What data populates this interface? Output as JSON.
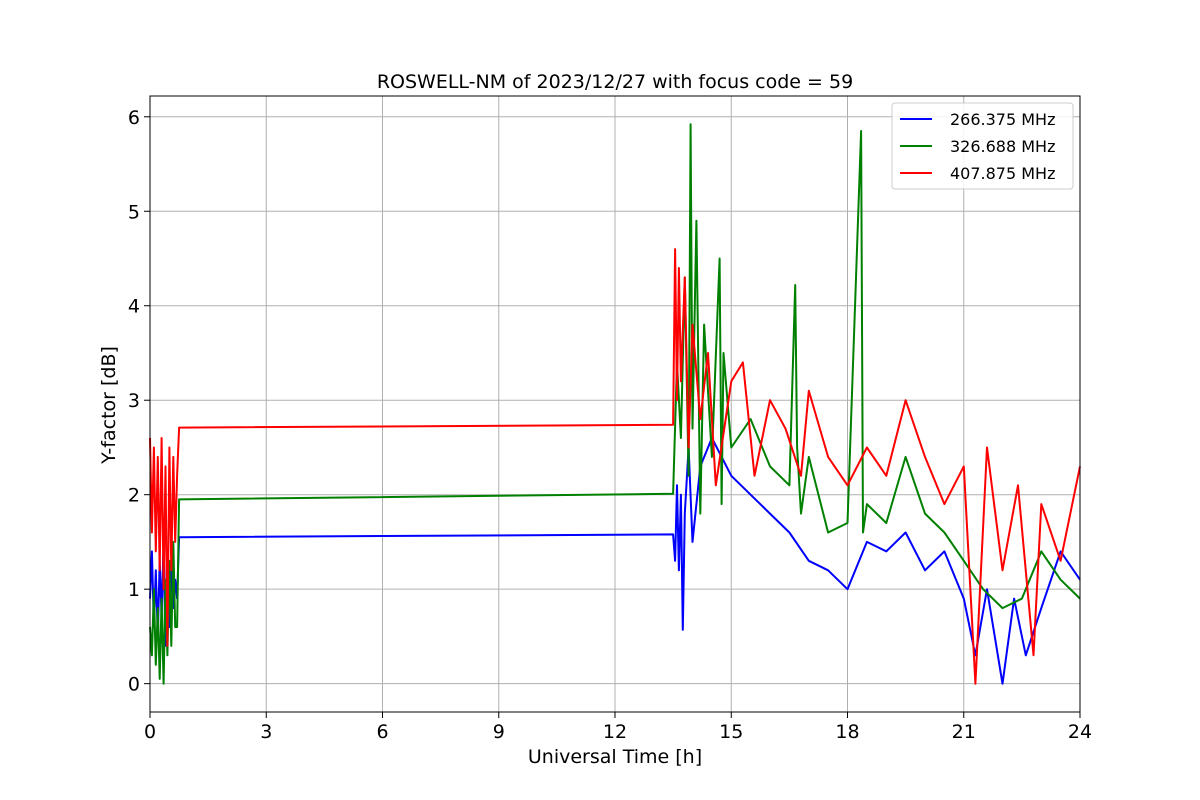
{
  "chart_data": {
    "type": "line",
    "title": "ROSWELL-NM of 2023/12/27 with focus code = 59",
    "xlabel": "Universal Time [h]",
    "ylabel": "Y-factor [dB]",
    "xlim": [
      0,
      24
    ],
    "ylim": [
      -0.3,
      6.22
    ],
    "xticks": [
      0,
      3,
      6,
      9,
      12,
      15,
      18,
      21,
      24
    ],
    "yticks": [
      0,
      1,
      2,
      3,
      4,
      5,
      6
    ],
    "grid": true,
    "legend_position": "top-right",
    "series": [
      {
        "name": "266.375 MHz",
        "color": "#0000ff",
        "x": [
          0.0,
          0.05,
          0.1,
          0.15,
          0.2,
          0.25,
          0.3,
          0.35,
          0.4,
          0.45,
          0.5,
          0.55,
          0.6,
          0.65,
          0.7,
          0.75,
          13.5,
          13.55,
          13.6,
          13.65,
          13.7,
          13.75,
          13.8,
          13.9,
          14.0,
          14.2,
          14.5,
          15.0,
          15.5,
          16.0,
          16.5,
          17.0,
          17.5,
          18.0,
          18.5,
          19.0,
          19.5,
          20.0,
          20.5,
          21.0,
          21.3,
          21.6,
          22.0,
          22.3,
          22.6,
          23.0,
          23.5,
          24.0
        ],
        "values": [
          0.9,
          1.4,
          0.6,
          1.2,
          0.5,
          1.3,
          0.7,
          1.5,
          0.4,
          1.2,
          0.6,
          1.3,
          0.8,
          1.1,
          0.9,
          1.55,
          1.58,
          1.3,
          2.1,
          1.2,
          2.0,
          0.57,
          1.8,
          2.5,
          1.5,
          2.3,
          2.6,
          2.2,
          2.0,
          1.8,
          1.6,
          1.3,
          1.2,
          1.0,
          1.5,
          1.4,
          1.6,
          1.2,
          1.4,
          0.9,
          0.3,
          1.0,
          0.0,
          0.9,
          0.3,
          0.8,
          1.4,
          1.1
        ]
      },
      {
        "name": "326.688 MHz",
        "color": "#008000",
        "x": [
          0.0,
          0.05,
          0.1,
          0.15,
          0.2,
          0.25,
          0.3,
          0.35,
          0.4,
          0.45,
          0.5,
          0.55,
          0.6,
          0.65,
          0.7,
          0.75,
          13.5,
          13.6,
          13.7,
          13.8,
          13.9,
          13.95,
          14.0,
          14.1,
          14.2,
          14.3,
          14.5,
          14.7,
          14.75,
          14.8,
          15.0,
          15.5,
          16.0,
          16.5,
          16.65,
          16.7,
          16.8,
          17.0,
          17.5,
          18.0,
          18.35,
          18.4,
          18.5,
          19.0,
          19.5,
          20.0,
          20.5,
          21.0,
          21.5,
          22.0,
          22.5,
          23.0,
          23.5,
          24.0
        ],
        "values": [
          0.6,
          0.3,
          1.0,
          0.2,
          0.8,
          0.05,
          0.9,
          0.0,
          1.1,
          0.3,
          1.3,
          0.4,
          1.5,
          0.6,
          0.6,
          1.95,
          2.01,
          3.4,
          2.6,
          4.3,
          2.2,
          5.92,
          2.7,
          4.9,
          1.8,
          3.8,
          2.4,
          4.5,
          1.9,
          3.5,
          2.5,
          2.8,
          2.3,
          2.1,
          4.22,
          2.5,
          1.8,
          2.4,
          1.6,
          1.7,
          5.85,
          1.6,
          1.9,
          1.7,
          2.4,
          1.8,
          1.6,
          1.3,
          1.0,
          0.8,
          0.9,
          1.4,
          1.1,
          0.9
        ]
      },
      {
        "name": "407.875 MHz",
        "color": "#ff0000",
        "x": [
          0.0,
          0.05,
          0.1,
          0.15,
          0.2,
          0.25,
          0.3,
          0.35,
          0.4,
          0.45,
          0.5,
          0.55,
          0.6,
          0.65,
          0.7,
          0.75,
          13.5,
          13.55,
          13.6,
          13.65,
          13.7,
          13.8,
          13.9,
          14.0,
          14.2,
          14.4,
          14.6,
          15.0,
          15.3,
          15.6,
          16.0,
          16.4,
          16.8,
          17.0,
          17.5,
          18.0,
          18.5,
          19.0,
          19.5,
          20.0,
          20.5,
          21.0,
          21.3,
          21.6,
          22.0,
          22.4,
          22.8,
          23.0,
          23.5,
          24.0
        ],
        "values": [
          2.6,
          1.6,
          2.5,
          1.4,
          2.4,
          1.2,
          2.6,
          1.0,
          2.3,
          0.4,
          2.5,
          1.2,
          2.4,
          1.5,
          2.2,
          2.71,
          2.74,
          4.6,
          3.0,
          4.4,
          3.2,
          4.3,
          2.5,
          3.8,
          2.8,
          3.5,
          2.1,
          3.2,
          3.4,
          2.2,
          3.0,
          2.7,
          2.2,
          3.1,
          2.4,
          2.1,
          2.5,
          2.2,
          3.0,
          2.4,
          1.9,
          2.3,
          0.0,
          2.5,
          1.2,
          2.1,
          0.3,
          1.9,
          1.3,
          2.3
        ]
      }
    ]
  }
}
